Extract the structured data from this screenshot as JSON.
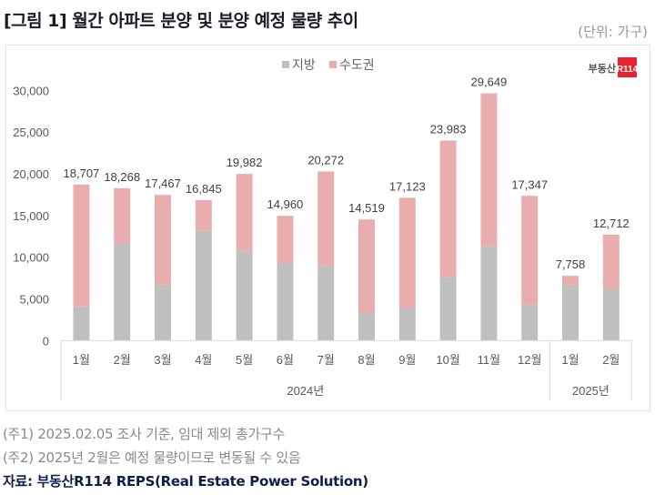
{
  "header": {
    "title": "[그림 1] 월간 아파트 분양 및 분양 예정 물량 추이",
    "unit": "(단위: 가구)"
  },
  "logo": {
    "text": "부동산",
    "badge": "R114"
  },
  "footnotes": [
    "(주1) 2025.02.05 조사 기준, 임대 제외 총가구수",
    "(주2) 2025년 2월은 예정 물량이므로 변동될 수 있음"
  ],
  "source": "자료: 부동산R114 REPS(Real Estate Power Solution)",
  "chart_data": {
    "type": "bar",
    "stacked": true,
    "title": "",
    "categories": [
      "1월",
      "2월",
      "3월",
      "4월",
      "5월",
      "6월",
      "7월",
      "8월",
      "9월",
      "10월",
      "11월",
      "12월",
      "1월",
      "2월"
    ],
    "groups": [
      {
        "label": "2024년",
        "count": 12
      },
      {
        "label": "2025년",
        "count": 2
      }
    ],
    "series": [
      {
        "name": "지방",
        "color": "#bfbfbf",
        "values": [
          4100,
          11600,
          6700,
          13200,
          10800,
          9300,
          9000,
          3300,
          3900,
          7600,
          11300,
          4300,
          6700,
          6200
        ]
      },
      {
        "name": "수도권",
        "color": "#eaadad",
        "values": [
          14607,
          6668,
          10767,
          3645,
          9182,
          5660,
          11272,
          11219,
          13223,
          16383,
          18349,
          13047,
          1058,
          6512
        ]
      }
    ],
    "totals": [
      18707,
      18268,
      17467,
      16845,
      19982,
      14960,
      20272,
      14519,
      17123,
      23983,
      29649,
      17347,
      7758,
      12712
    ],
    "total_labels": [
      "18,707",
      "18,268",
      "17,467",
      "16,845",
      "19,982",
      "14,960",
      "20,272",
      "14,519",
      "17,123",
      "23,983",
      "29,649",
      "17,347",
      "7,758",
      "12,712"
    ],
    "yticks": [
      "0",
      "5,000",
      "10,000",
      "15,000",
      "20,000",
      "25,000",
      "30,000"
    ],
    "ylim": [
      0,
      30000
    ],
    "grid": false,
    "legend": "top-center"
  }
}
